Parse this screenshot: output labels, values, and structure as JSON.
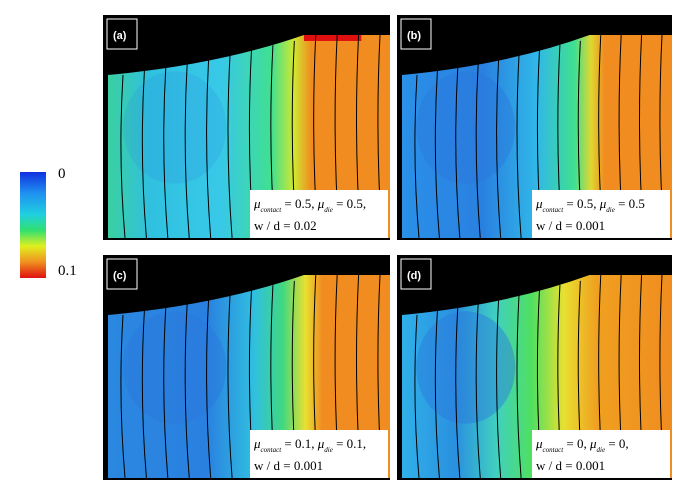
{
  "colorbar": {
    "min_label": "0",
    "max_label": "0.1"
  },
  "panels": [
    {
      "label": "(a)",
      "line1": [
        "μ",
        "contact",
        " = 0.5, ",
        "μ",
        "die",
        " = 0.5,"
      ],
      "line2": "w / d = 0.02"
    },
    {
      "label": "(b)",
      "line1": [
        "μ",
        "contact",
        " = 0.5, ",
        "μ",
        "die",
        " = 0.5"
      ],
      "line2": "w / d = 0.001"
    },
    {
      "label": "(c)",
      "line1": [
        "μ",
        "contact",
        " = 0.1, ",
        "μ",
        "die",
        " = 0.1,"
      ],
      "line2": "w / d = 0.001"
    },
    {
      "label": "(d)",
      "line1": [
        "μ",
        "contact",
        " = 0, ",
        "μ",
        "die",
        " = 0,"
      ],
      "line2": "w / d = 0.001"
    }
  ]
}
